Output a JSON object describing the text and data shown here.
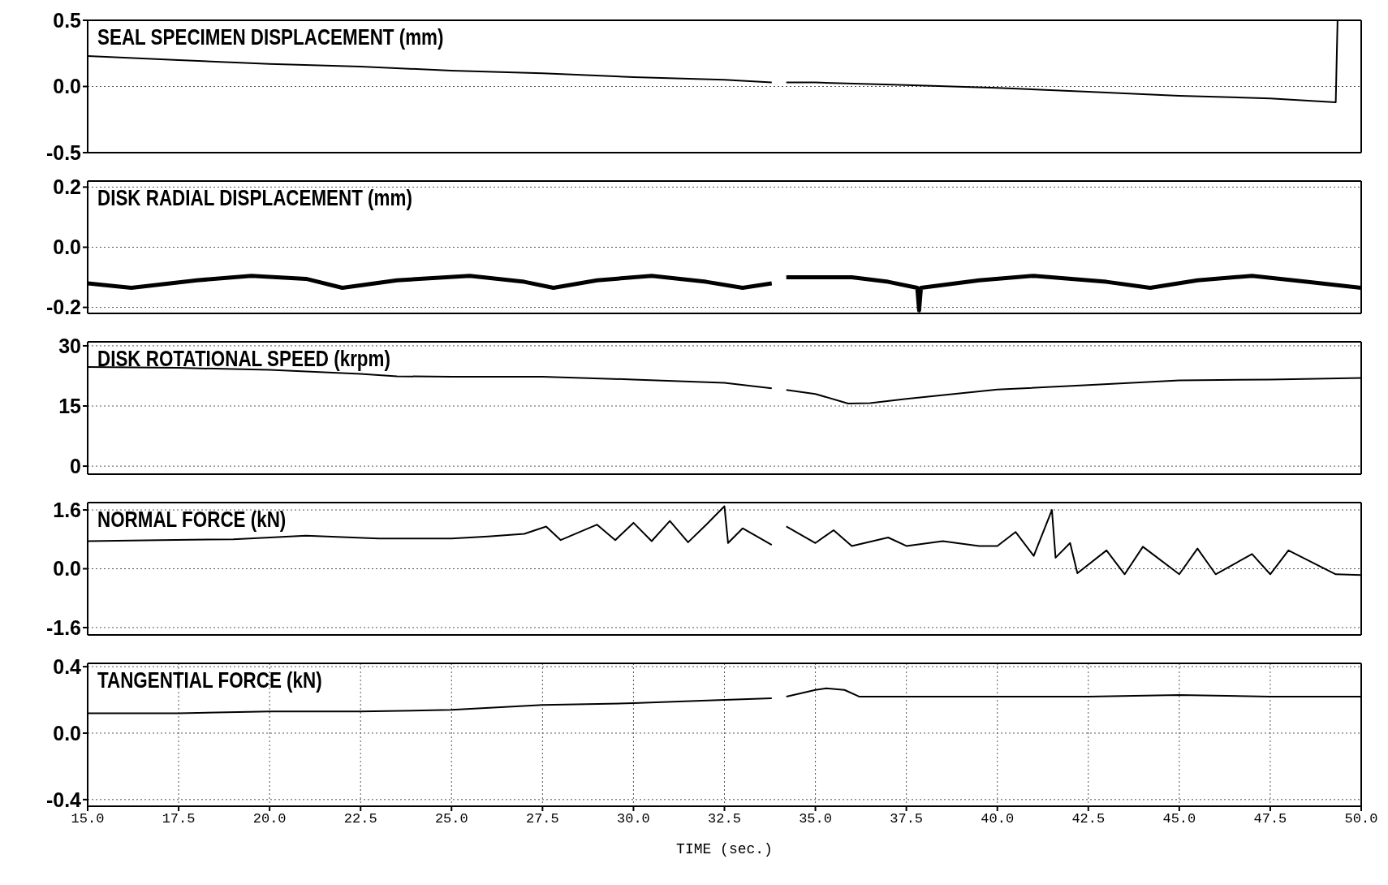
{
  "chart_data": [
    {
      "type": "line",
      "title": "SEAL SPECIMEN DISPLACEMENT (mm)",
      "x": [
        15,
        17.5,
        20,
        22.5,
        25,
        27.5,
        30,
        32.5,
        33.8,
        34,
        34.2,
        35,
        37.5,
        40,
        42.5,
        45,
        47.5,
        49.3,
        49.35
      ],
      "values": [
        0.23,
        0.2,
        0.17,
        0.15,
        0.12,
        0.1,
        0.07,
        0.05,
        0.03,
        null,
        0.03,
        0.03,
        0.01,
        -0.01,
        -0.04,
        -0.07,
        -0.09,
        -0.12,
        0.5
      ],
      "color": "#000000",
      "xlim": [
        15,
        50
      ],
      "xticks": [
        15,
        17.5,
        20,
        22.5,
        25,
        27.5,
        30,
        32.5,
        35,
        37.5,
        40,
        42.5,
        45,
        47.5,
        50
      ],
      "ylim": [
        -0.5,
        0.5
      ],
      "yticks": [
        {
          "value": -0.5,
          "label": "-0.5"
        },
        {
          "value": 0,
          "label": "0.0"
        },
        0.5
      ],
      "grid": true,
      "tick_labels": "y"
    },
    {
      "type": "line",
      "title": "DISK RADIAL DISPLACEMENT (mm)",
      "x": [
        15,
        16.2,
        18,
        19.5,
        21,
        22,
        23.5,
        25.5,
        27,
        27.8,
        29,
        30.5,
        32,
        33,
        33.8,
        34,
        34.2,
        36,
        37,
        37.8,
        37.85,
        37.9,
        39.5,
        41,
        43,
        44.2,
        45.5,
        47,
        48.5,
        50
      ],
      "values": [
        -0.12,
        -0.135,
        -0.11,
        -0.095,
        -0.105,
        -0.135,
        -0.11,
        -0.095,
        -0.115,
        -0.135,
        -0.11,
        -0.095,
        -0.115,
        -0.135,
        -0.12,
        null,
        -0.1,
        -0.1,
        -0.115,
        -0.135,
        -0.21,
        -0.135,
        -0.11,
        -0.095,
        -0.115,
        -0.135,
        -0.11,
        -0.095,
        -0.115,
        -0.135
      ],
      "color": "#000000",
      "xlim": [
        15,
        50
      ],
      "xticks": [
        15,
        17.5,
        20,
        22.5,
        25,
        27.5,
        30,
        32.5,
        35,
        37.5,
        40,
        42.5,
        45,
        47.5,
        50
      ],
      "ylim": [
        -0.22,
        0.22
      ],
      "yticks": [
        {
          "value": -0.2,
          "label": "-0.2"
        },
        {
          "value": 0,
          "label": "0.0"
        },
        0.2
      ],
      "grid": true,
      "tick_labels": "y"
    },
    {
      "type": "line",
      "title": "DISK ROTATIONAL SPEED (krpm)",
      "x": [
        15,
        17.5,
        20,
        22.5,
        23.5,
        25,
        27.5,
        30,
        32.5,
        33.8,
        34,
        34.2,
        35,
        35.9,
        36.5,
        37.5,
        40,
        42.5,
        45,
        47.5,
        50
      ],
      "values": [
        24.7,
        24.5,
        24,
        23,
        22.4,
        22.3,
        22.3,
        21.6,
        20.8,
        19.4,
        null,
        19,
        18,
        15.6,
        15.7,
        16.8,
        19.1,
        20.2,
        21.4,
        21.6,
        22
      ],
      "color": "#000000",
      "xlim": [
        15,
        50
      ],
      "xticks": [
        15,
        17.5,
        20,
        22.5,
        25,
        27.5,
        30,
        32.5,
        35,
        37.5,
        40,
        42.5,
        45,
        47.5,
        50
      ],
      "ylim": [
        -2,
        31
      ],
      "yticks": [
        0,
        15,
        30
      ],
      "grid": true,
      "tick_labels": "y"
    },
    {
      "type": "line",
      "title": "NORMAL FORCE (kN)",
      "x": [
        15,
        17,
        19,
        21,
        23,
        25,
        26,
        27,
        27.6,
        28,
        29,
        29.5,
        30,
        30.5,
        31,
        31.5,
        32,
        32.5,
        32.6,
        33,
        33.8,
        34,
        34.2,
        35,
        35.5,
        36,
        37,
        37.5,
        38.5,
        39.5,
        40,
        40.5,
        41,
        41.5,
        41.6,
        42,
        42.2,
        43,
        43.5,
        44,
        45,
        45.5,
        46,
        47,
        47.5,
        48,
        49.3,
        50
      ],
      "values": [
        0.75,
        0.78,
        0.8,
        0.9,
        0.82,
        0.82,
        0.88,
        0.95,
        1.15,
        0.78,
        1.2,
        0.78,
        1.25,
        0.75,
        1.3,
        0.72,
        1.2,
        1.7,
        0.7,
        1.1,
        0.65,
        null,
        1.15,
        0.7,
        1.05,
        0.62,
        0.85,
        0.62,
        0.75,
        0.62,
        0.62,
        1.0,
        0.35,
        1.6,
        0.3,
        0.7,
        -0.12,
        0.5,
        -0.15,
        0.6,
        -0.15,
        0.55,
        -0.15,
        0.4,
        -0.15,
        0.5,
        -0.15,
        -0.17
      ],
      "color": "#000000",
      "xlim": [
        15,
        50
      ],
      "xticks": [
        15,
        17.5,
        20,
        22.5,
        25,
        27.5,
        30,
        32.5,
        35,
        37.5,
        40,
        42.5,
        45,
        47.5,
        50
      ],
      "ylim": [
        -1.8,
        1.8
      ],
      "yticks": [
        -1.6,
        {
          "value": 0,
          "label": "0.0"
        },
        1.6
      ],
      "grid": true,
      "tick_labels": "y"
    },
    {
      "type": "line",
      "title": "TANGENTIAL FORCE (kN)",
      "x": [
        15,
        17.5,
        20,
        22.5,
        25,
        27.5,
        30,
        32.5,
        33.8,
        34,
        34.2,
        35,
        35.3,
        35.8,
        36.2,
        37.5,
        40,
        42.5,
        45,
        47.5,
        49.3,
        50
      ],
      "values": [
        0.12,
        0.12,
        0.13,
        0.13,
        0.14,
        0.17,
        0.18,
        0.2,
        0.21,
        null,
        0.22,
        0.26,
        0.27,
        0.26,
        0.22,
        0.22,
        0.22,
        0.22,
        0.23,
        0.22,
        0.22,
        0.22
      ],
      "color": "#000000",
      "xlabel": "TIME (sec.)",
      "xlim": [
        15,
        50
      ],
      "xticks": [
        {
          "value": 15,
          "label": "15.0"
        },
        17.5,
        {
          "value": 20,
          "label": "20.0"
        },
        22.5,
        {
          "value": 25,
          "label": "25.0"
        },
        27.5,
        {
          "value": 30,
          "label": "30.0"
        },
        32.5,
        {
          "value": 35,
          "label": "35.0"
        },
        37.5,
        {
          "value": 40,
          "label": "40.0"
        },
        42.5,
        {
          "value": 45,
          "label": "45.0"
        },
        47.5,
        {
          "value": 50,
          "label": "50.0"
        }
      ],
      "ylim": [
        -0.44,
        0.42
      ],
      "yticks": [
        {
          "value": -0.4,
          "label": "-0.4"
        },
        {
          "value": 0,
          "label": "0.0"
        },
        0.4
      ],
      "grid": true
    }
  ]
}
